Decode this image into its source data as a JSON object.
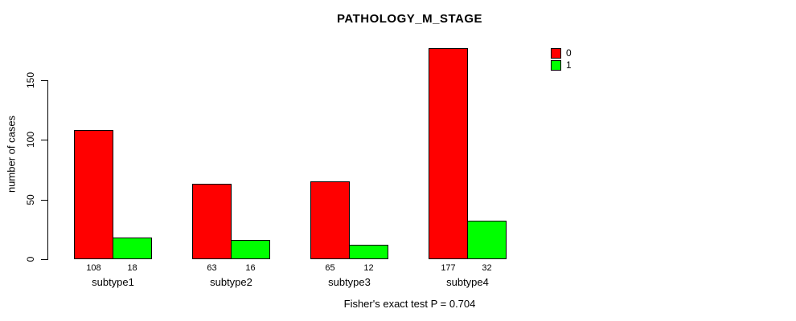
{
  "chart_data": {
    "type": "bar",
    "title": "PATHOLOGY_M_STAGE",
    "categories": [
      "subtype1",
      "subtype2",
      "subtype3",
      "subtype4"
    ],
    "series": [
      {
        "name": "0",
        "color": "#ff0000",
        "values": [
          108,
          63,
          65,
          177
        ]
      },
      {
        "name": "1",
        "color": "#00ff00",
        "values": [
          18,
          16,
          12,
          32
        ]
      }
    ],
    "xlabel": "",
    "ylabel": "number of cases",
    "yticks": [
      0,
      50,
      100,
      150
    ],
    "ylim": [
      0,
      177
    ],
    "grid": "off",
    "legend_position": "top-right",
    "bar_value_labels_shown": true,
    "annotation": "Fisher's exact test P = 0.704"
  },
  "colors": {
    "axis": "#000000",
    "text": "#000000",
    "background": "#ffffff",
    "series_0": "#ff0000",
    "series_1": "#00ff00"
  }
}
